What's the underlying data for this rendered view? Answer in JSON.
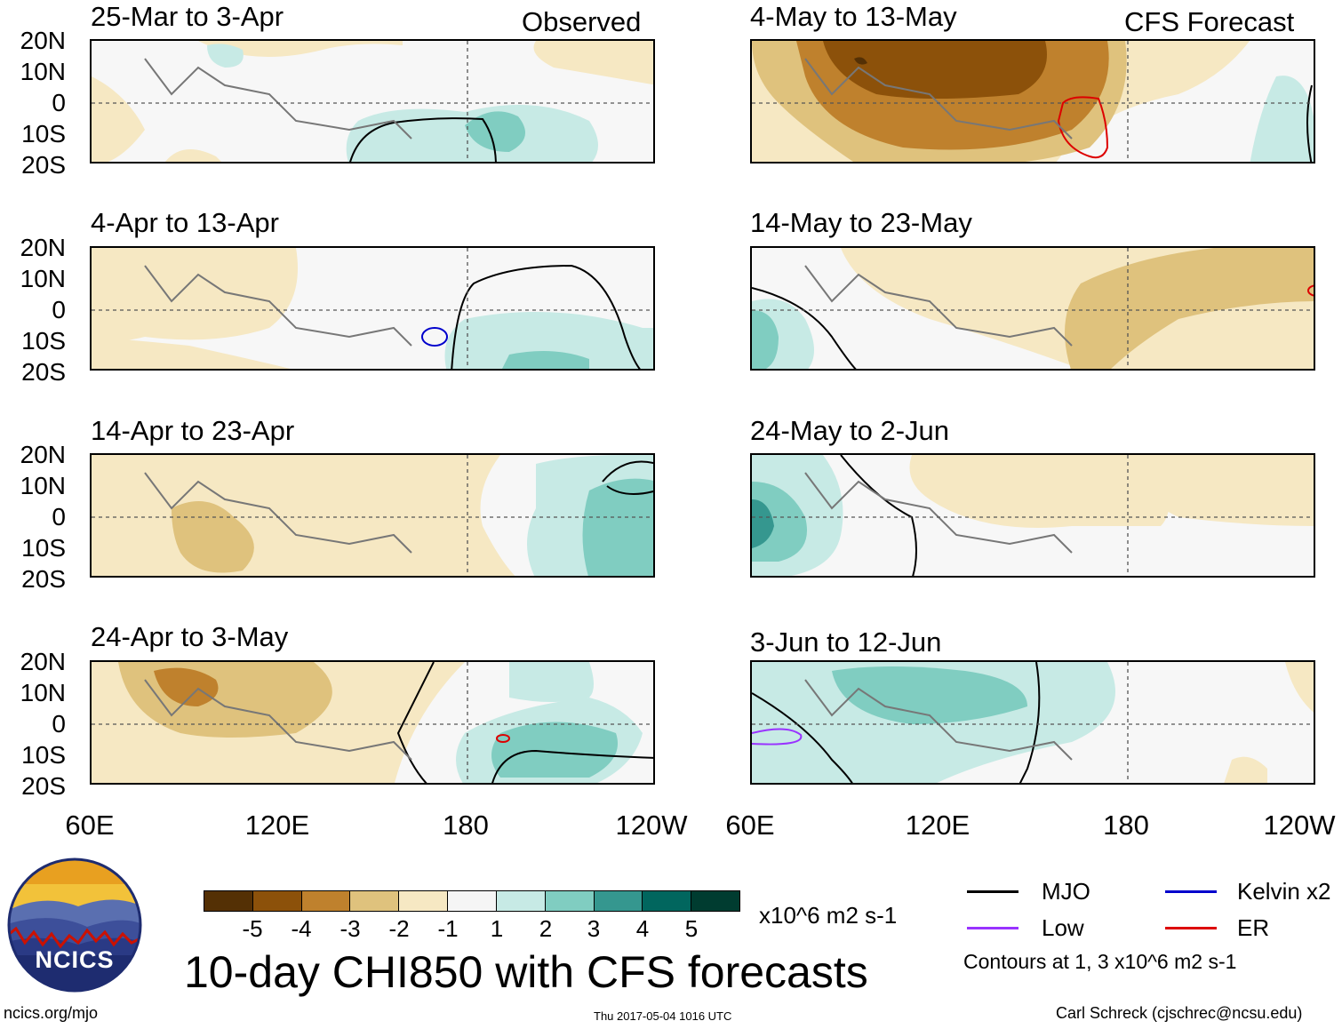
{
  "headers": {
    "left": "Observed",
    "right": "CFS Forecast"
  },
  "panels": [
    {
      "title": "25-Mar to 3-Apr",
      "side": "observed"
    },
    {
      "title": "4-Apr to 13-Apr",
      "side": "observed"
    },
    {
      "title": "14-Apr to 23-Apr",
      "side": "observed"
    },
    {
      "title": "24-Apr to 3-May",
      "side": "observed"
    },
    {
      "title": "4-May to 13-May",
      "side": "forecast"
    },
    {
      "title": "14-May to 23-May",
      "side": "forecast"
    },
    {
      "title": "24-May to 2-Jun",
      "side": "forecast"
    },
    {
      "title": "3-Jun to 12-Jun",
      "side": "forecast"
    }
  ],
  "y_labels": [
    "20N",
    "10N",
    "0",
    "10S",
    "20S"
  ],
  "x_labels": [
    "60E",
    "120E",
    "180",
    "120W"
  ],
  "x_labels_right": [
    "60E",
    "120E",
    "180",
    "120W"
  ],
  "colorbar": {
    "ticks": [
      "-5",
      "-4",
      "-3",
      "-2",
      "-1",
      "1",
      "2",
      "3",
      "4",
      "5"
    ],
    "colors": [
      "#543005",
      "#8c510a",
      "#bf812d",
      "#dfc27d",
      "#f6e8c3",
      "#f5f5f5",
      "#c7eae5",
      "#80cdc1",
      "#35978f",
      "#01665e",
      "#003c30"
    ],
    "units": "x10^6 m2 s-1"
  },
  "legend": {
    "items": [
      {
        "label": "MJO",
        "color": "#000000"
      },
      {
        "label": "Kelvin x2",
        "color": "#0000cc"
      },
      {
        "label": "Low",
        "color": "#9933ff"
      },
      {
        "label": "ER",
        "color": "#dd0000"
      }
    ],
    "note": "Contours at 1, 3 x10^6 m2 s-1"
  },
  "main_title": "10-day CHI850 with CFS forecasts",
  "logo_text": "NCICS",
  "footer": {
    "left": "ncics.org/mjo",
    "center": "Thu 2017-05-04 1016 UTC",
    "right": "Carl Schreck (cjschrec@ncsu.edu)"
  }
}
